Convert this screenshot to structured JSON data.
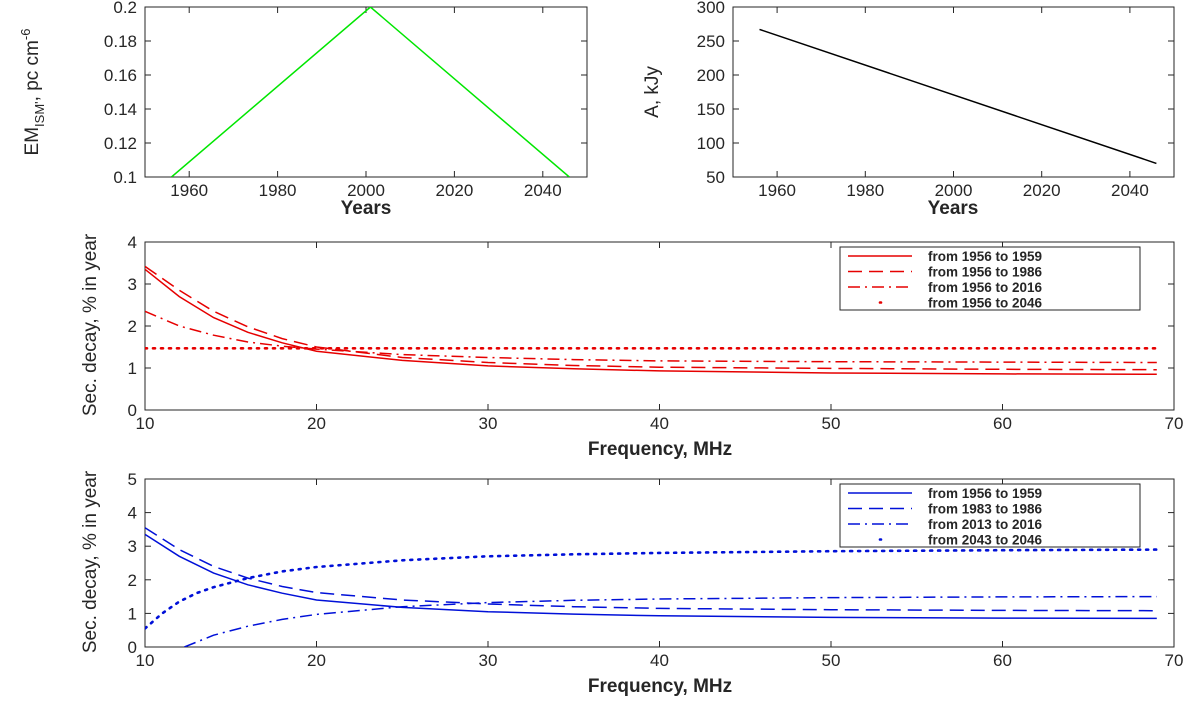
{
  "colors": {
    "green": "#00e600",
    "black": "#000000",
    "red": "#e60000",
    "blue": "#0010d8",
    "axis": "#262626"
  },
  "chart_data": [
    {
      "id": "em",
      "type": "line",
      "xlabel": "Years",
      "ylabel": "EM",
      "ylabel_sub": "ISM'",
      "ylabel_rest": ", pc cm",
      "ylabel_sup": "-6",
      "xlim": [
        1950,
        2050
      ],
      "ylim": [
        0.1,
        0.2
      ],
      "xticks": [
        "1960",
        "1980",
        "2000",
        "2020",
        "2040"
      ],
      "yticks": [
        "0.1",
        "0.12",
        "0.14",
        "0.16",
        "0.18",
        "0.2"
      ],
      "series": [
        {
          "color": "green",
          "dash": "solid",
          "x": [
            1956,
            2001,
            2046
          ],
          "y": [
            0.1,
            0.2,
            0.1
          ]
        }
      ]
    },
    {
      "id": "amp",
      "type": "line",
      "xlabel": "Years",
      "ylabel": "A, kJy",
      "xlim": [
        1950,
        2050
      ],
      "ylim": [
        50,
        300
      ],
      "xticks": [
        "1960",
        "1980",
        "2000",
        "2020",
        "2040"
      ],
      "yticks": [
        "50",
        "100",
        "150",
        "200",
        "250",
        "300"
      ],
      "series": [
        {
          "color": "black",
          "dash": "solid",
          "x": [
            1956,
            2046
          ],
          "y": [
            267,
            70
          ]
        }
      ]
    },
    {
      "id": "decay-red",
      "type": "line",
      "xlabel": "Frequency, MHz",
      "ylabel": "Sec. decay, % in year",
      "xlim": [
        10,
        70
      ],
      "ylim": [
        0,
        4
      ],
      "xticks": [
        "10",
        "20",
        "30",
        "40",
        "50",
        "60",
        "70"
      ],
      "yticks": [
        "0",
        "1",
        "2",
        "3",
        "4"
      ],
      "legend_position": "top-right",
      "series": [
        {
          "name": "from 1956 to 1959",
          "color": "red",
          "dash": "solid",
          "x": [
            10,
            12,
            14,
            16,
            18,
            20,
            25,
            30,
            35,
            40,
            50,
            60,
            69
          ],
          "y": [
            3.35,
            2.7,
            2.2,
            1.85,
            1.6,
            1.4,
            1.18,
            1.05,
            0.98,
            0.93,
            0.88,
            0.86,
            0.85
          ]
        },
        {
          "name": "from 1956 to 1986",
          "color": "red",
          "dash": "dash",
          "x": [
            10,
            12,
            14,
            16,
            18,
            20,
            25,
            30,
            35,
            40,
            50,
            60,
            69
          ],
          "y": [
            3.42,
            2.85,
            2.35,
            1.98,
            1.7,
            1.5,
            1.25,
            1.13,
            1.06,
            1.02,
            0.99,
            0.97,
            0.96
          ]
        },
        {
          "name": "from 1956 to 2016",
          "color": "red",
          "dash": "dashdot",
          "x": [
            10,
            12,
            14,
            16,
            18,
            20,
            25,
            30,
            35,
            40,
            50,
            60,
            69
          ],
          "y": [
            2.35,
            2.0,
            1.78,
            1.62,
            1.52,
            1.45,
            1.32,
            1.25,
            1.2,
            1.17,
            1.15,
            1.14,
            1.13
          ]
        },
        {
          "name": "from 1956 to 2046",
          "color": "red",
          "dash": "dot",
          "x": [
            10,
            20,
            30,
            40,
            50,
            60,
            69
          ],
          "y": [
            1.47,
            1.47,
            1.47,
            1.47,
            1.47,
            1.47,
            1.47
          ]
        }
      ]
    },
    {
      "id": "decay-blue",
      "type": "line",
      "xlabel": "Frequency, MHz",
      "ylabel": "Sec. decay, % in year",
      "xlim": [
        10,
        70
      ],
      "ylim": [
        0,
        5
      ],
      "xticks": [
        "10",
        "20",
        "30",
        "40",
        "50",
        "60",
        "70"
      ],
      "yticks": [
        "0",
        "1",
        "2",
        "3",
        "4",
        "5"
      ],
      "legend_position": "top-right",
      "series": [
        {
          "name": "from 1956 to 1959",
          "color": "blue",
          "dash": "solid",
          "x": [
            10,
            12,
            14,
            16,
            18,
            20,
            25,
            30,
            35,
            40,
            50,
            60,
            69
          ],
          "y": [
            3.35,
            2.7,
            2.2,
            1.85,
            1.6,
            1.4,
            1.18,
            1.05,
            0.98,
            0.93,
            0.88,
            0.86,
            0.85
          ]
        },
        {
          "name": "from 1983 to 1986",
          "color": "blue",
          "dash": "dash",
          "x": [
            10,
            12,
            14,
            16,
            18,
            20,
            25,
            30,
            35,
            40,
            50,
            60,
            69
          ],
          "y": [
            3.55,
            2.9,
            2.4,
            2.05,
            1.8,
            1.62,
            1.4,
            1.28,
            1.2,
            1.15,
            1.11,
            1.09,
            1.08
          ]
        },
        {
          "name": "from 2013 to 2016",
          "color": "blue",
          "dash": "dashdot",
          "x": [
            12.3,
            14,
            16,
            18,
            20,
            25,
            30,
            35,
            40,
            50,
            60,
            69
          ],
          "y": [
            0.0,
            0.35,
            0.62,
            0.82,
            0.97,
            1.2,
            1.32,
            1.39,
            1.43,
            1.47,
            1.49,
            1.5
          ]
        },
        {
          "name": "from 2043 to 2046",
          "color": "blue",
          "dash": "dot",
          "x": [
            10,
            11,
            12,
            13,
            14,
            16,
            18,
            20,
            25,
            30,
            35,
            40,
            50,
            60,
            69
          ],
          "y": [
            0.55,
            1.0,
            1.35,
            1.6,
            1.78,
            2.05,
            2.25,
            2.38,
            2.58,
            2.7,
            2.76,
            2.8,
            2.85,
            2.88,
            2.9
          ]
        }
      ]
    }
  ]
}
